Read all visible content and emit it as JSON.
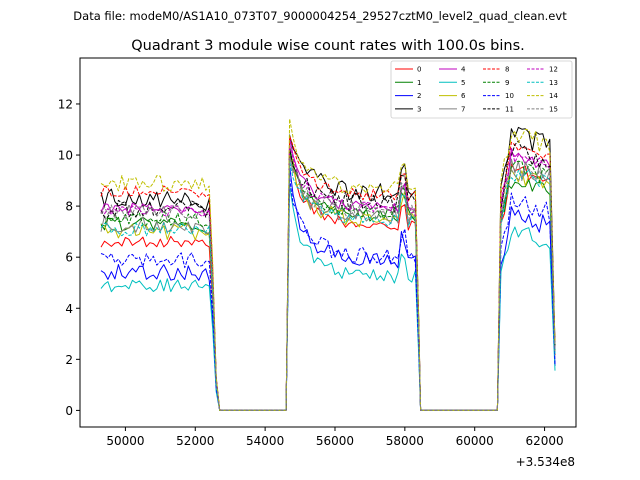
{
  "chart_data": {
    "type": "line",
    "suptitle": "Data file: modeM0/AS1A10_073T07_9000004254_29527cztM0_level2_quad_clean.evt",
    "title": "Quadrant 3 module wise count rates with 100.0s bins.",
    "xlabel": "",
    "ylabel": "",
    "x_offset_label": "+3.534e8",
    "xlim": [
      48700,
      62900
    ],
    "ylim": [
      -0.65,
      13.8
    ],
    "x_ticks": [
      50000,
      52000,
      54000,
      56000,
      58000,
      60000,
      62000
    ],
    "x_tick_labels": [
      "50000",
      "52000",
      "54000",
      "56000",
      "58000",
      "60000",
      "62000"
    ],
    "y_ticks": [
      0,
      2,
      4,
      6,
      8,
      10,
      12
    ],
    "y_tick_labels": [
      "0",
      "2",
      "4",
      "6",
      "8",
      "10",
      "12"
    ],
    "legend_location": "upper right",
    "segments": [
      {
        "start": 49300,
        "end": 52400,
        "gap_drop_end": 52700
      },
      {
        "start": 54700,
        "end": 58350,
        "gap_drop_end": 58450
      },
      {
        "start": 60750,
        "end": 62300,
        "gap_drop_end": null
      }
    ],
    "zero_intervals": [
      [
        52700,
        54700
      ],
      [
        58450,
        60750
      ]
    ],
    "series": [
      {
        "name": "0",
        "color": "#ff0000",
        "dashed": false,
        "levels": [
          6.6,
          10.0,
          7.2,
          9.5
        ]
      },
      {
        "name": "1",
        "color": "#008000",
        "dashed": false,
        "levels": [
          7.3,
          10.3,
          7.6,
          9.0
        ]
      },
      {
        "name": "2",
        "color": "#0000ff",
        "dashed": false,
        "levels": [
          5.4,
          9.3,
          5.8,
          7.6
        ]
      },
      {
        "name": "3",
        "color": "#000000",
        "dashed": false,
        "levels": [
          8.3,
          11.0,
          8.5,
          10.8
        ]
      },
      {
        "name": "4",
        "color": "#bf00bf",
        "dashed": false,
        "levels": [
          7.9,
          10.6,
          7.9,
          10.0
        ]
      },
      {
        "name": "5",
        "color": "#00bfbf",
        "dashed": false,
        "levels": [
          4.9,
          8.6,
          5.2,
          7.0
        ]
      },
      {
        "name": "6",
        "color": "#bfbf00",
        "dashed": false,
        "levels": [
          7.0,
          10.1,
          7.4,
          9.3
        ]
      },
      {
        "name": "7",
        "color": "#808080",
        "dashed": false,
        "levels": [
          7.3,
          10.0,
          7.6,
          9.4
        ]
      },
      {
        "name": "8",
        "color": "#ff0000",
        "dashed": true,
        "levels": [
          8.6,
          10.9,
          8.4,
          10.4
        ]
      },
      {
        "name": "9",
        "color": "#008000",
        "dashed": true,
        "levels": [
          7.5,
          10.0,
          7.7,
          9.6
        ]
      },
      {
        "name": "10",
        "color": "#0000ff",
        "dashed": true,
        "levels": [
          5.9,
          8.9,
          6.0,
          8.2
        ]
      },
      {
        "name": "11",
        "color": "#000000",
        "dashed": true,
        "levels": [
          7.9,
          10.3,
          8.1,
          10.2
        ]
      },
      {
        "name": "12",
        "color": "#bf00bf",
        "dashed": true,
        "levels": [
          7.8,
          10.4,
          7.9,
          10.0
        ]
      },
      {
        "name": "13",
        "color": "#00bfbf",
        "dashed": true,
        "levels": [
          7.1,
          9.7,
          7.4,
          9.3
        ]
      },
      {
        "name": "14",
        "color": "#bfbf00",
        "dashed": true,
        "levels": [
          8.9,
          11.1,
          8.7,
          10.9
        ]
      },
      {
        "name": "15",
        "color": "#808080",
        "dashed": true,
        "levels": [
          7.7,
          10.1,
          7.7,
          9.5
        ]
      }
    ]
  }
}
